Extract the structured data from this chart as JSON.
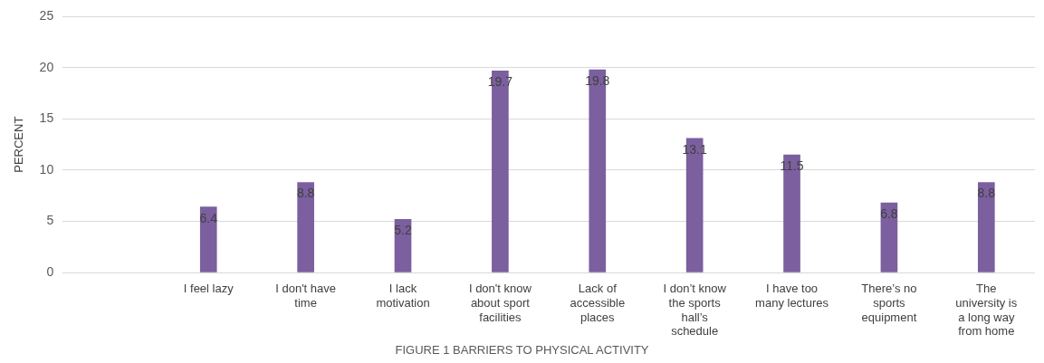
{
  "chart_data": {
    "type": "bar",
    "title": "FIGURE 1 BARRIERS TO PHYSICAL ACTIVITY",
    "ylabel": "PERCENT",
    "categories": [
      null,
      "I feel lazy",
      "I don't have time",
      "I lack motivation",
      "I don't know about sport facilities",
      "Lack of accessible places",
      "I don’t know the sports hall’s schedule",
      "I have too many lectures",
      "There’s no sports equipment",
      "The university is a long way from home"
    ],
    "values": [
      null,
      6.4,
      8.8,
      5.2,
      19.7,
      19.8,
      13.1,
      11.5,
      6.8,
      8.8
    ],
    "color": "#7b5f9e",
    "ylim": [
      0,
      25
    ],
    "yticks": [
      0,
      5,
      10,
      15,
      20,
      25
    ],
    "grid": "y",
    "data_labels": true,
    "legend": false
  }
}
